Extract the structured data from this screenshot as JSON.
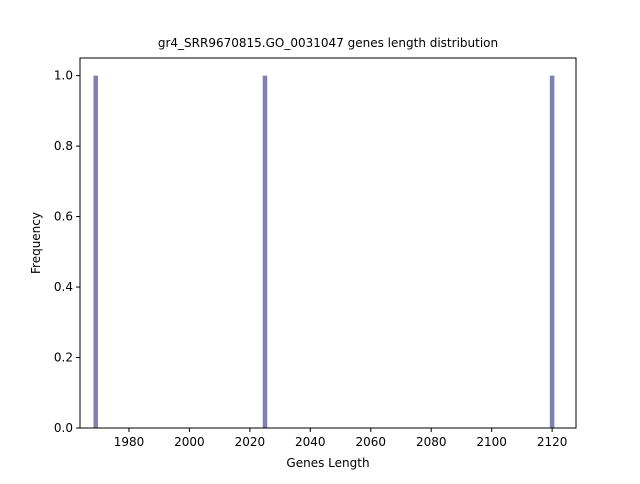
{
  "chart_data": {
    "type": "bar",
    "title": "gr4_SRR9670815.GO_0031047 genes length distribution",
    "xlabel": "Genes Length",
    "ylabel": "Frequency",
    "xlim": [
      1963.8,
      2127.9
    ],
    "ylim": [
      0,
      1.05
    ],
    "xticks": [
      1980,
      2000,
      2020,
      2040,
      2060,
      2080,
      2100,
      2120
    ],
    "yticks": [
      0.0,
      0.2,
      0.4,
      0.6,
      0.8,
      1.0
    ],
    "bar_width": 1.5,
    "bars": [
      {
        "x": 1969,
        "value": 1.0
      },
      {
        "x": 2025,
        "value": 1.0
      },
      {
        "x": 2120,
        "value": 1.0
      }
    ],
    "bar_color": "#8080b3",
    "grid": false
  }
}
